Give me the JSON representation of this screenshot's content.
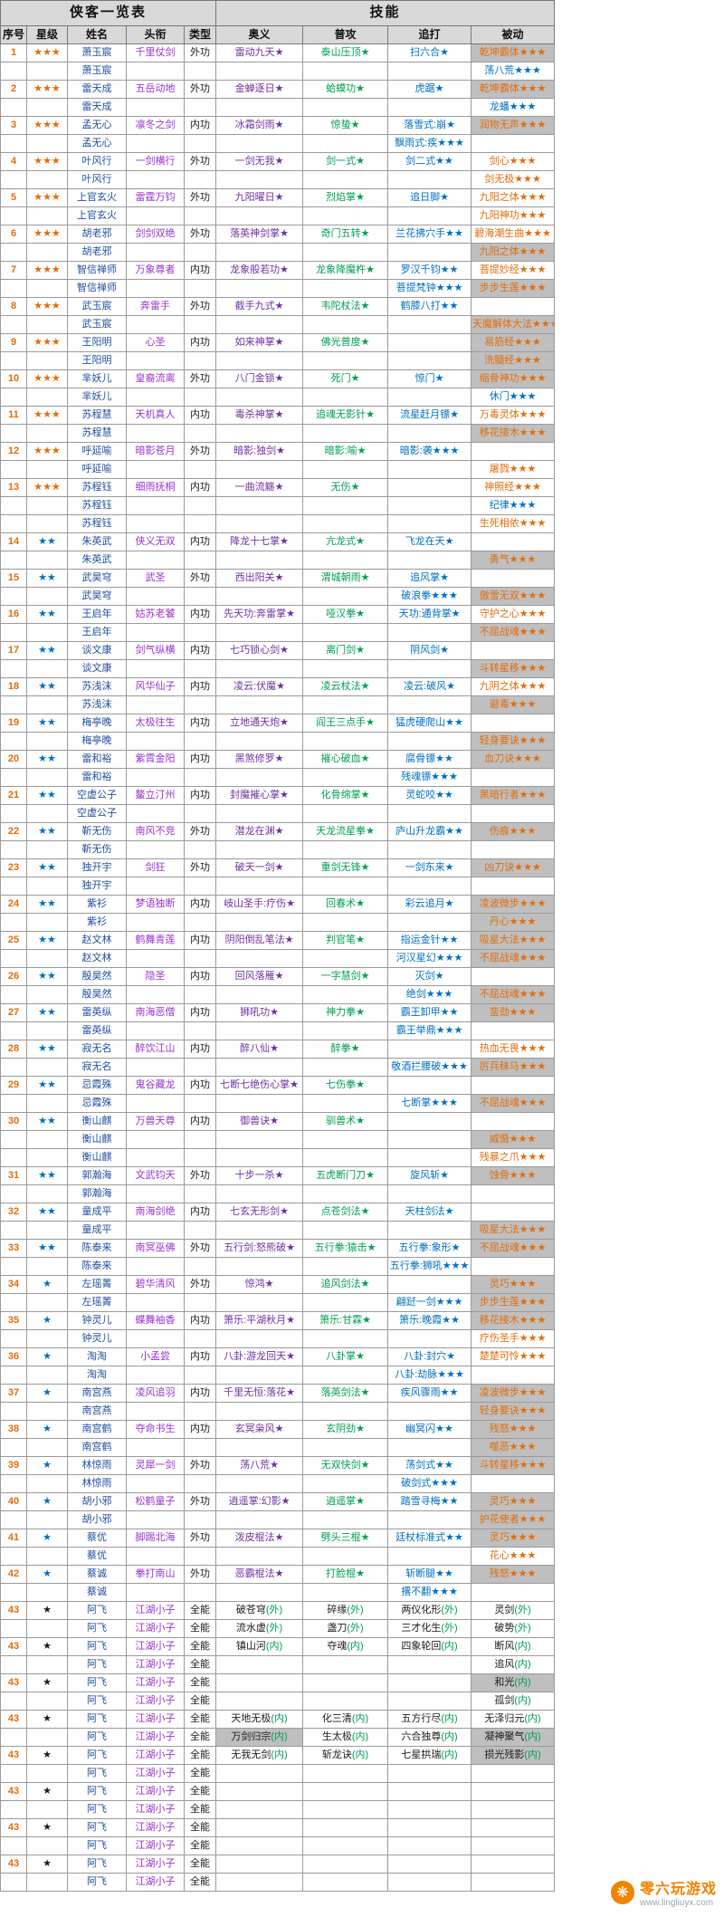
{
  "header": {
    "left_title": "侠客一览表",
    "right_title": "技能"
  },
  "columns": [
    "序号",
    "星级",
    "姓名",
    "头衔",
    "类型",
    "奥义",
    "普攻",
    "追打",
    "被动"
  ],
  "colors": {
    "aoyi_purple": "#7030A0",
    "pugong_green": "#00A050",
    "zhuida_blue": "#0070C0",
    "beidong_orange": "#E36C0A",
    "name_blue": "#1F4E9C",
    "title_purple": "#9933CC",
    "seq_orange": "#E36C0A",
    "gray_cell_bg": "#BFBFBF",
    "header_bg": "#D9D9D9"
  },
  "watermark": {
    "name": "零六玩游戏",
    "url": "www.lingliuyx.com"
  },
  "rows": [
    [
      "1",
      "o:★★★",
      "萧玉宸",
      "千里仗剑",
      "外功",
      "p:雷动九天★",
      "g:泰山压顶★",
      "b:扫六合★",
      "o!:乾坤霸体★★★"
    ],
    [
      "",
      "",
      "萧玉宸",
      "",
      "",
      "",
      "",
      "",
      "b:荡八荒★★★"
    ],
    [
      "2",
      "o:★★★",
      "雷天成",
      "五岳动地",
      "外功",
      "p:金蝉逐日★",
      "g:蛤蟆功★",
      "b:虎踞★",
      "o!:乾坤霸体★★★"
    ],
    [
      "",
      "",
      "雷天成",
      "",
      "",
      "",
      "",
      "",
      "b:龙蟠★★★"
    ],
    [
      "3",
      "o:★★★",
      "孟无心",
      "凛冬之剑",
      "内功",
      "p:冰霜剑雨★",
      "g:惊蛰★",
      "b:落雪式:崩★",
      "o!:润物无声★★★"
    ],
    [
      "",
      "",
      "孟无心",
      "",
      "",
      "",
      "",
      "b:飘雨式:疾★★★",
      ""
    ],
    [
      "4",
      "o:★★★",
      "叶风行",
      "一剑横行",
      "外功",
      "p:一剑无我★",
      "g:剑一式★",
      "b:剑二式★★",
      "o:剑心★★★"
    ],
    [
      "",
      "",
      "叶风行",
      "",
      "",
      "",
      "",
      "",
      "o:剑无极★★★"
    ],
    [
      "5",
      "o:★★★",
      "上官玄火",
      "雷霆万钧",
      "外功",
      "p:九阳曜日★",
      "g:烈焰掌★",
      "b:追日脚★",
      "o:九阳之体★★★"
    ],
    [
      "",
      "",
      "上官玄火",
      "",
      "",
      "",
      "",
      "",
      "o:九阳神功★★★"
    ],
    [
      "6",
      "o:★★★",
      "胡老邪",
      "剑剑双绝",
      "外功",
      "p:落英神剑掌★",
      "g:奇门五转★",
      "b:兰花拂穴手★★",
      "o:碧海潮生曲★★★"
    ],
    [
      "",
      "",
      "胡老邪",
      "",
      "",
      "",
      "",
      "",
      "o!:九阳之体★★★"
    ],
    [
      "7",
      "o:★★★",
      "智信禅师",
      "万象尊者",
      "内功",
      "p:龙象般若功★",
      "g:龙象降魔杵★",
      "b:罗汉千钧★★",
      "o:菩提妙经★★★"
    ],
    [
      "",
      "",
      "智信禅师",
      "",
      "",
      "",
      "",
      "b:菩提梵钟★★★",
      "o!:步步生莲★★★"
    ],
    [
      "8",
      "o:★★★",
      "武玉宸",
      "奔雷手",
      "外功",
      "p:截手九式★",
      "g:韦陀杖法★",
      "b:鹤膝八打★★",
      ""
    ],
    [
      "",
      "",
      "武玉宸",
      "",
      "",
      "",
      "",
      "",
      "o!:天魔解体大法★★★"
    ],
    [
      "9",
      "o:★★★",
      "王阳明",
      "心圣",
      "内功",
      "p:如来神掌★",
      "g:佛光普度★",
      "",
      "o!:易筋经★★★"
    ],
    [
      "",
      "",
      "王阳明",
      "",
      "",
      "",
      "",
      "",
      "o!:洗髓经★★★"
    ],
    [
      "10",
      "o:★★★",
      "芈妖儿",
      "皇裔流离",
      "外功",
      "p:八门金锁★",
      "g:死门★",
      "b:惊门★",
      "o!:缩骨神功★★★"
    ],
    [
      "",
      "",
      "芈妖儿",
      "",
      "",
      "",
      "",
      "",
      "b:休门★★★"
    ],
    [
      "11",
      "o:★★★",
      "苏程慧",
      "天机真人",
      "内功",
      "p:毒杀神掌★",
      "g:追魂无影针★",
      "b:流星赶月镖★",
      "o:万毒灵体★★★"
    ],
    [
      "",
      "",
      "苏程慧",
      "",
      "",
      "",
      "",
      "",
      "o!:移花接木★★★"
    ],
    [
      "12",
      "o:★★★",
      "呼延喻",
      "暗影苍月",
      "外功",
      "p:暗影:独剑★",
      "g:暗影:喻★",
      "b:暗影:袭★★★",
      ""
    ],
    [
      "",
      "",
      "呼延喻",
      "",
      "",
      "",
      "",
      "",
      "o:屠戮★★★"
    ],
    [
      "13",
      "o:★★★",
      "苏程钰",
      "细雨抚桐",
      "内功",
      "p:一曲流觞★",
      "g:无伤★",
      "",
      "o:神照经★★★"
    ],
    [
      "",
      "",
      "苏程钰",
      "",
      "",
      "",
      "",
      "",
      "b:纪律★★★"
    ],
    [
      "",
      "",
      "苏程钰",
      "",
      "",
      "",
      "",
      "",
      "o:生死相依★★★"
    ],
    [
      "14",
      "b:★★",
      "朱英武",
      "侠义无双",
      "内功",
      "p:降龙十七掌★",
      "g:亢龙式★",
      "b:飞龙在天★",
      ""
    ],
    [
      "",
      "",
      "朱英武",
      "",
      "",
      "",
      "",
      "",
      "o!:勇气★★★"
    ],
    [
      "15",
      "b:★★",
      "武昊穹",
      "武圣",
      "外功",
      "p:西出阳关★",
      "g:渭城朝雨★",
      "b:追风掌★",
      ""
    ],
    [
      "",
      "",
      "武昊穹",
      "",
      "",
      "",
      "",
      "b:破浪拳★★★",
      "o!:傲雪无双★★★"
    ],
    [
      "16",
      "b:★★",
      "王启年",
      "姑苏老饕",
      "内功",
      "p:先天功:奔雷掌★",
      "g:哑汉拳★",
      "b:天功:通背掌★",
      "o:守护之心★★★"
    ],
    [
      "",
      "",
      "王启年",
      "",
      "",
      "",
      "",
      "",
      "o!:不屈战魂★★★"
    ],
    [
      "17",
      "b:★★",
      "谈文康",
      "剑气纵横",
      "内功",
      "p:七巧锁心剑★",
      "g:离门剑★",
      "b:阴风剑★",
      ""
    ],
    [
      "",
      "",
      "谈文康",
      "",
      "",
      "",
      "",
      "",
      "o!:斗转星移★★★"
    ],
    [
      "18",
      "b:★★",
      "苏浅沫",
      "风华仙子",
      "内功",
      "p:凌云:伏魔★",
      "g:凌云杖法★",
      "b:凌云:破风★",
      "o:九阴之体★★★"
    ],
    [
      "",
      "",
      "苏浅沫",
      "",
      "",
      "",
      "",
      "",
      "o!:避毒★★★"
    ],
    [
      "19",
      "b:★★",
      "梅亭晚",
      "太极往生",
      "内功",
      "p:立地通天炮★",
      "g:阎王三点手★",
      "b:猛虎硬爬山★★",
      ""
    ],
    [
      "",
      "",
      "梅亭晚",
      "",
      "",
      "",
      "",
      "",
      "o!:轻身要诀★★★"
    ],
    [
      "20",
      "b:★★",
      "雷和裕",
      "紫霄金阳",
      "内功",
      "p:黑煞修罗★",
      "g:摧心破血★",
      "b:腐骨镖★★",
      "o!:血刀诀★★★"
    ],
    [
      "",
      "",
      "雷和裕",
      "",
      "",
      "",
      "",
      "b:残魂镖★★★",
      ""
    ],
    [
      "21",
      "b:★★",
      "空虚公子",
      "鳌立汀州",
      "内功",
      "p:封魔摧心掌★",
      "g:化骨绵掌★",
      "b:灵蛇咬★★",
      "o!:黑暗行者★★★"
    ],
    [
      "",
      "",
      "空虚公子",
      "",
      "",
      "",
      "",
      "",
      ""
    ],
    [
      "22",
      "b:★★",
      "靳无伤",
      "南风不竞",
      "外功",
      "p:潜龙在渊★",
      "g:天龙流星拳★",
      "b:庐山升龙霸★★",
      "o!:伤痕★★★"
    ],
    [
      "",
      "",
      "靳无伤",
      "",
      "",
      "",
      "",
      "",
      ""
    ],
    [
      "23",
      "b:★★",
      "独开宇",
      "剑狂",
      "外功",
      "p:破天一剑★",
      "g:重剑无锋★",
      "b:一剑东来★",
      "o!:凶刀诀★★★"
    ],
    [
      "",
      "",
      "独开宇",
      "",
      "",
      "",
      "",
      "",
      ""
    ],
    [
      "24",
      "b:★★",
      "紫衫",
      "梦语独断",
      "内功",
      "p:岐山圣手:疗伤★",
      "g:回春术★",
      "b:彩云追月★",
      "o!:凌波微步★★★"
    ],
    [
      "",
      "",
      "紫衫",
      "",
      "",
      "",
      "",
      "",
      "o!:丹心★★★"
    ],
    [
      "25",
      "b:★★",
      "赵文林",
      "鹤舞青莲",
      "内功",
      "p:阴阳倒乱笔法★",
      "g:判官笔★",
      "b:指运金针★★",
      "o!:吸星大法★★★"
    ],
    [
      "",
      "",
      "赵文林",
      "",
      "",
      "",
      "",
      "b:河汉星幻★★★",
      "o!:不屈战魂★★★"
    ],
    [
      "26",
      "b:★★",
      "殷昊然",
      "隐圣",
      "内功",
      "p:回风落雁★",
      "g:一字慧剑★",
      "b:灭剑★",
      ""
    ],
    [
      "",
      "",
      "殷昊然",
      "",
      "",
      "",
      "",
      "b:绝剑★★★",
      "o!:不屈战魂★★★"
    ],
    [
      "27",
      "b:★★",
      "雷英纵",
      "南海恶僧",
      "内功",
      "p:狮吼功★",
      "g:神力拳★",
      "b:霸王卸甲★★",
      "o!:蛮劲★★★"
    ],
    [
      "",
      "",
      "雷英纵",
      "",
      "",
      "",
      "",
      "b:霸王举鼎★★★",
      ""
    ],
    [
      "28",
      "b:★★",
      "寂无名",
      "醉饮江山",
      "内功",
      "p:醉八仙★",
      "g:醉拳★",
      "",
      "o:热血无畏★★★"
    ],
    [
      "",
      "",
      "寂无名",
      "",
      "",
      "",
      "",
      "b:敬酒拦腰破★★★",
      "o!:厉兵秣马★★★"
    ],
    [
      "29",
      "b:★★",
      "忌霞殊",
      "鬼谷藏龙",
      "内功",
      "p:七断七绝伤心掌★",
      "g:七伤拳★",
      "",
      ""
    ],
    [
      "",
      "",
      "忌霞殊",
      "",
      "",
      "",
      "",
      "b:七断掌★★★",
      "o!:不屈战魂★★★"
    ],
    [
      "30",
      "b:★★",
      "衡山麒",
      "万兽天尊",
      "内功",
      "p:御兽诀★",
      "g:驯兽术★",
      "",
      ""
    ],
    [
      "",
      "",
      "衡山麒",
      "",
      "",
      "",
      "",
      "",
      "o!:威慑★★★"
    ],
    [
      "",
      "",
      "衡山麒",
      "",
      "",
      "",
      "",
      "",
      "o:残暴之爪★★★"
    ],
    [
      "31",
      "b:★★",
      "郭瀚海",
      "文武钧天",
      "外功",
      "p:十步一杀★",
      "g:五虎断门刀★",
      "b:旋风斩★",
      "o!:蚀骨★★★"
    ],
    [
      "",
      "",
      "郭瀚海",
      "",
      "",
      "",
      "",
      "",
      ""
    ],
    [
      "32",
      "b:★★",
      "童成平",
      "南海剑绝",
      "内功",
      "p:七玄无形剑★",
      "g:点苍剑法★",
      "b:天柱剑法★",
      ""
    ],
    [
      "",
      "",
      "童成平",
      "",
      "",
      "",
      "",
      "",
      "o!:吸星大法★★★"
    ],
    [
      "33",
      "b:★★",
      "陈泰来",
      "南冥巫佛",
      "外功",
      "p:五行剑:怒熊破★",
      "g:五行拳:猿击★",
      "b:五行拳:象形★",
      "o!:不屈战魂★★★"
    ],
    [
      "",
      "",
      "陈泰来",
      "",
      "",
      "",
      "",
      "b:五行拳:狮吼★★★",
      ""
    ],
    [
      "34",
      "b:★",
      "左瑶菁",
      "碧华清风",
      "外功",
      "p:惊鸿★",
      "g:追风剑法★",
      "",
      "o!:灵巧★★★"
    ],
    [
      "",
      "",
      "左瑶菁",
      "",
      "",
      "",
      "",
      "b:翩跹一剑★★★",
      "o!:步步生莲★★★"
    ],
    [
      "35",
      "b:★",
      "钟灵儿",
      "蝶舞袖香",
      "内功",
      "p:箫乐:平湖秋月★",
      "g:箫乐:甘霖★",
      "b:箫乐:晚霞★★",
      "o!:移花接木★★★"
    ],
    [
      "",
      "",
      "钟灵儿",
      "",
      "",
      "",
      "",
      "",
      "o:疗伤圣手★★★"
    ],
    [
      "36",
      "b:★",
      "淘淘",
      "小孟尝",
      "内功",
      "p:八卦:游龙回天★",
      "g:八卦掌★",
      "b:八卦:封穴★",
      "o:楚楚可怜★★★"
    ],
    [
      "",
      "",
      "淘淘",
      "",
      "",
      "",
      "",
      "b:八卦:劫脉★★★",
      ""
    ],
    [
      "37",
      "b:★",
      "南宫燕",
      "凌风追羽",
      "内功",
      "p:千里无恒:落花★",
      "g:落英剑法★",
      "b:疾风骤雨★★",
      "o!:凌波微步★★★"
    ],
    [
      "",
      "",
      "南宫燕",
      "",
      "",
      "",
      "",
      "",
      "o!:轻身要诀★★★"
    ],
    [
      "38",
      "b:★",
      "南宫鹤",
      "夺命书生",
      "内功",
      "p:玄冥枭风★",
      "g:玄阴劲★",
      "b:幽冥闪★★",
      "o!:残怒★★★"
    ],
    [
      "",
      "",
      "南宫鹤",
      "",
      "",
      "",
      "",
      "",
      "o!:噬恶★★★"
    ],
    [
      "39",
      "b:★",
      "林惊雨",
      "灵犀一剑",
      "外功",
      "p:荡八荒★",
      "g:无双快剑★",
      "b:荡剑式★★",
      "o!:斗转星移★★★"
    ],
    [
      "",
      "",
      "林惊雨",
      "",
      "",
      "",
      "",
      "b:破剑式★★★",
      ""
    ],
    [
      "40",
      "b:★",
      "胡小邪",
      "松鹤童子",
      "外功",
      "p:逍遥掌:幻影★",
      "g:逍遥掌★",
      "b:踏雪寻梅★★",
      "o!:灵巧★★★"
    ],
    [
      "",
      "",
      "胡小邪",
      "",
      "",
      "",
      "",
      "",
      "o!:护花使者★★★"
    ],
    [
      "41",
      "b:★",
      "蔡优",
      "脚踢北海",
      "外功",
      "p:泼皮棍法★",
      "g:劈头三棍★",
      "b:廷杖标准式★★",
      "o!:灵巧★★★"
    ],
    [
      "",
      "",
      "蔡优",
      "",
      "",
      "",
      "",
      "",
      "o:花心★★★"
    ],
    [
      "42",
      "b:★",
      "蔡诚",
      "拳打南山",
      "外功",
      "p:恶霸棍法★",
      "g:打脸棍★",
      "b:斩断腿★★",
      "o!:残怒★★★"
    ],
    [
      "",
      "",
      "蔡诚",
      "",
      "",
      "",
      "",
      "b:撂不翻★★★",
      ""
    ],
    [
      "43",
      "k:★",
      "阿飞",
      "江湖小子",
      "全能",
      "k:破苍穹(外)",
      "k:碎缘(外)",
      "k:两仪化形(外)",
      "k:灵剑(外)"
    ],
    [
      "",
      "",
      "阿飞",
      "江湖小子",
      "全能",
      "k:流水虚(外)",
      "k:盏刀(外)",
      "k:三才化生(外)",
      "k:破势(外)"
    ],
    [
      "43",
      "k:★",
      "阿飞",
      "江湖小子",
      "全能",
      "k:镇山河(内)",
      "k:夺魂(内)",
      "k:四象轮回(内)",
      "k:断风(内)"
    ],
    [
      "",
      "",
      "阿飞",
      "江湖小子",
      "全能",
      "",
      "",
      "",
      "k:追风(内)"
    ],
    [
      "43",
      "k:★",
      "阿飞",
      "江湖小子",
      "全能",
      "",
      "",
      "",
      "k!:和光(内)"
    ],
    [
      "",
      "",
      "阿飞",
      "江湖小子",
      "全能",
      "",
      "",
      "",
      "k:孤剑(内)"
    ],
    [
      "43",
      "k:★",
      "阿飞",
      "江湖小子",
      "全能",
      "k:天地无极(内)",
      "k:化三清(内)",
      "k:五方行尽(内)",
      "k:无泽归元(内)"
    ],
    [
      "",
      "",
      "阿飞",
      "江湖小子",
      "全能",
      "k!:万剑归宗(内)",
      "k:生太极(内)",
      "k:六合独尊(内)",
      "k!:凝神聚气(内)"
    ],
    [
      "43",
      "k:★",
      "阿飞",
      "江湖小子",
      "全能",
      "k:无我无剑(内)",
      "k:斩龙诀(内)",
      "k:七星拱瑞(内)",
      "k!:损光残影(内)"
    ],
    [
      "",
      "",
      "阿飞",
      "江湖小子",
      "全能",
      "",
      "",
      "",
      ""
    ],
    [
      "43",
      "k:★",
      "阿飞",
      "江湖小子",
      "全能",
      "",
      "",
      "",
      ""
    ],
    [
      "",
      "",
      "阿飞",
      "江湖小子",
      "全能",
      "",
      "",
      "",
      ""
    ],
    [
      "43",
      "k:★",
      "阿飞",
      "江湖小子",
      "全能",
      "",
      "",
      "",
      ""
    ],
    [
      "",
      "",
      "阿飞",
      "江湖小子",
      "全能",
      "",
      "",
      "",
      ""
    ],
    [
      "43",
      "k:★",
      "阿飞",
      "江湖小子",
      "全能",
      "",
      "",
      "",
      ""
    ],
    [
      "",
      "",
      "阿飞",
      "江湖小子",
      "全能",
      "",
      "",
      "",
      ""
    ]
  ]
}
